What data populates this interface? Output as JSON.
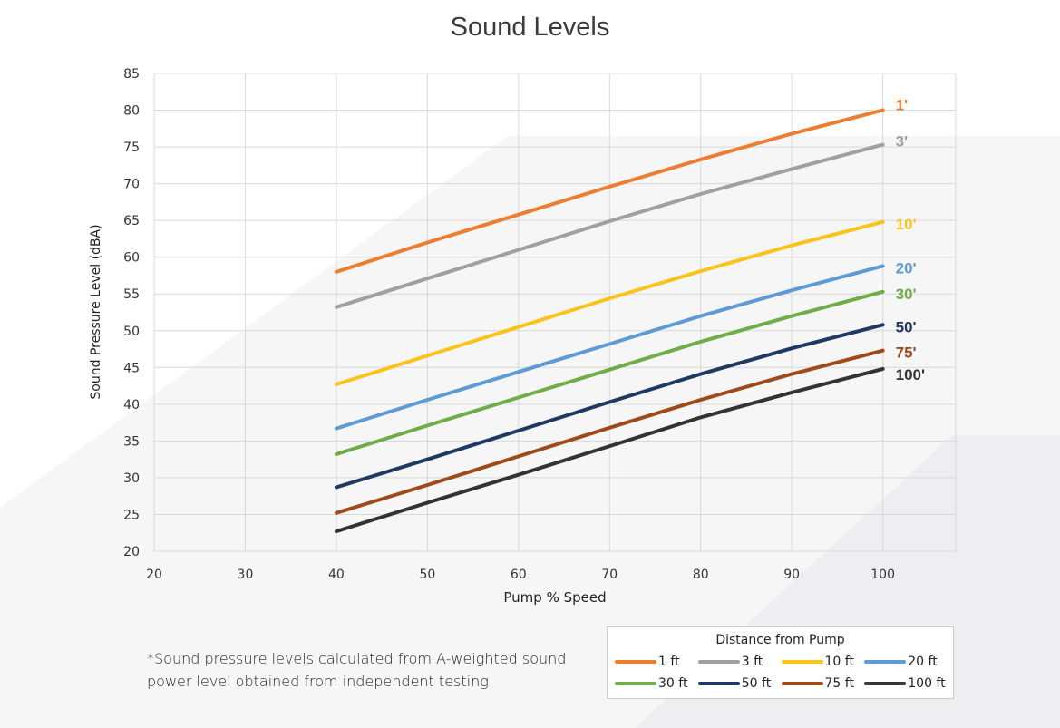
{
  "chart_data": {
    "type": "line",
    "title": "Sound Levels",
    "xlabel": "Pump % Speed",
    "ylabel": "Sound Pressure Level (dBA)",
    "xlim": [
      20,
      108
    ],
    "ylim": [
      20,
      85
    ],
    "xticks": [
      20,
      30,
      40,
      50,
      60,
      70,
      80,
      90,
      100
    ],
    "yticks": [
      20,
      25,
      30,
      35,
      40,
      45,
      50,
      55,
      60,
      65,
      70,
      75,
      80,
      85
    ],
    "grid": true,
    "x": [
      40,
      50,
      60,
      70,
      80,
      90,
      100
    ],
    "series": [
      {
        "name": "1 ft",
        "end_label": "1'",
        "color": "#ed7d31",
        "values": [
          58.0,
          62.0,
          65.8,
          69.6,
          73.3,
          76.8,
          80.0
        ]
      },
      {
        "name": "3 ft",
        "end_label": "3'",
        "color": "#a0a0a0",
        "values": [
          53.2,
          57.1,
          61.0,
          64.9,
          68.6,
          72.0,
          75.3
        ]
      },
      {
        "name": "10 ft",
        "end_label": "10'",
        "color": "#fbc31c",
        "values": [
          42.7,
          46.6,
          50.5,
          54.4,
          58.1,
          61.6,
          64.8
        ]
      },
      {
        "name": "20 ft",
        "end_label": "20'",
        "color": "#5e9bd5",
        "values": [
          36.7,
          40.6,
          44.4,
          48.2,
          52.0,
          55.5,
          58.8
        ]
      },
      {
        "name": "30 ft",
        "end_label": "30'",
        "color": "#70ad47",
        "values": [
          33.2,
          37.1,
          40.9,
          44.7,
          48.5,
          52.0,
          55.3
        ]
      },
      {
        "name": "50 ft",
        "end_label": "50'",
        "color": "#203864",
        "values": [
          28.7,
          32.5,
          36.4,
          40.3,
          44.1,
          47.6,
          50.8
        ]
      },
      {
        "name": "75 ft",
        "end_label": "75'",
        "color": "#9e4a1a",
        "values": [
          25.2,
          29.0,
          32.9,
          36.8,
          40.6,
          44.1,
          47.3
        ]
      },
      {
        "name": "100 ft",
        "end_label": "100'",
        "color": "#333333",
        "values": [
          22.7,
          26.6,
          30.4,
          34.3,
          38.2,
          41.6,
          44.8
        ]
      }
    ],
    "legend": {
      "title": "Distance from Pump",
      "placement": "bottom-right"
    }
  },
  "footnote": "*Sound pressure levels calculated from A-weighted sound power level obtained from independent testing"
}
